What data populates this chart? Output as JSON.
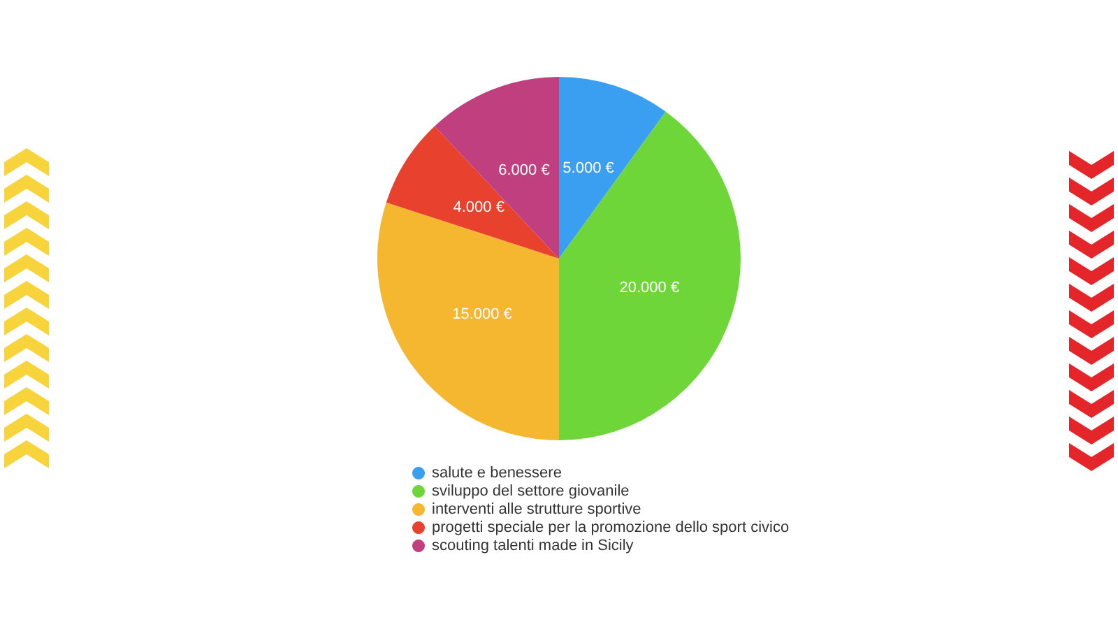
{
  "chart_data": {
    "type": "pie",
    "categories": [
      "salute e benessere",
      "sviluppo del settore giovanile",
      "interventi alle strutture sportive",
      "progetti speciale per la promozione dello sport civico",
      "scouting talenti made in Sicily"
    ],
    "values": [
      5000,
      20000,
      15000,
      4000,
      6000
    ],
    "colors": [
      "#3a9ff0",
      "#6fd63a",
      "#f5b730",
      "#e8412e",
      "#c0407f"
    ],
    "value_labels": [
      "5.000 €",
      "20.000 €",
      "15.000 €",
      "4.000 €",
      "6.000 €"
    ],
    "legend": "bottom"
  }
}
